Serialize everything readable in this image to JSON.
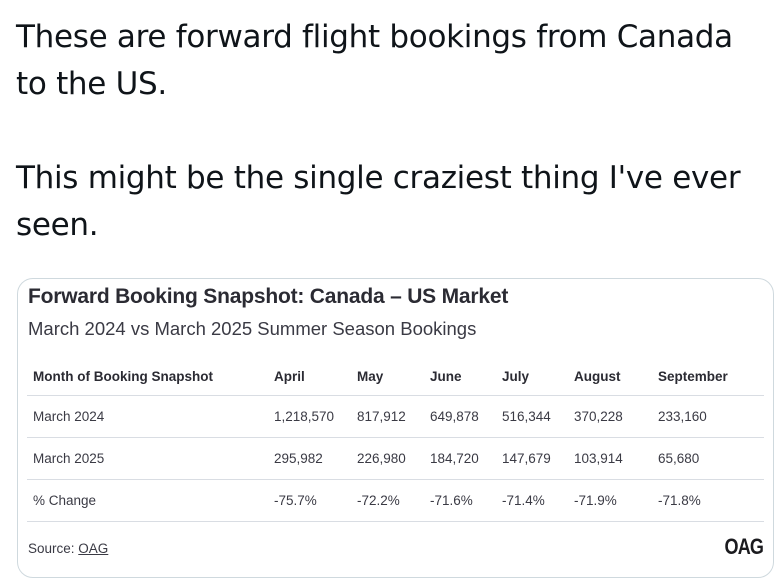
{
  "tweet": {
    "paragraph1": "These are forward flight bookings from Canada to the US.",
    "paragraph2": "This might be the single craziest thing I've ever seen."
  },
  "card": {
    "title": "Forward Booking Snapshot: Canada – US Market",
    "subtitle": "March 2024 vs March 2025 Summer Season Bookings",
    "source_prefix": "Source: ",
    "source_link": "OAG",
    "logo_text": "OAG"
  },
  "chart_data": {
    "type": "table",
    "title": "Forward Booking Snapshot: Canada – US Market",
    "subtitle": "March 2024 vs March 2025 Summer Season Bookings",
    "columns": [
      "Month of Booking Snapshot",
      "April",
      "May",
      "June",
      "July",
      "August",
      "September"
    ],
    "rows": [
      [
        "March 2024",
        "1,218,570",
        "817,912",
        "649,878",
        "516,344",
        "370,228",
        "233,160"
      ],
      [
        "March 2025",
        "295,982",
        "226,980",
        "184,720",
        "147,679",
        "103,914",
        "65,680"
      ],
      [
        "% Change",
        "-75.7%",
        "-72.2%",
        "-71.6%",
        "-71.4%",
        "-71.9%",
        "-71.8%"
      ]
    ]
  }
}
